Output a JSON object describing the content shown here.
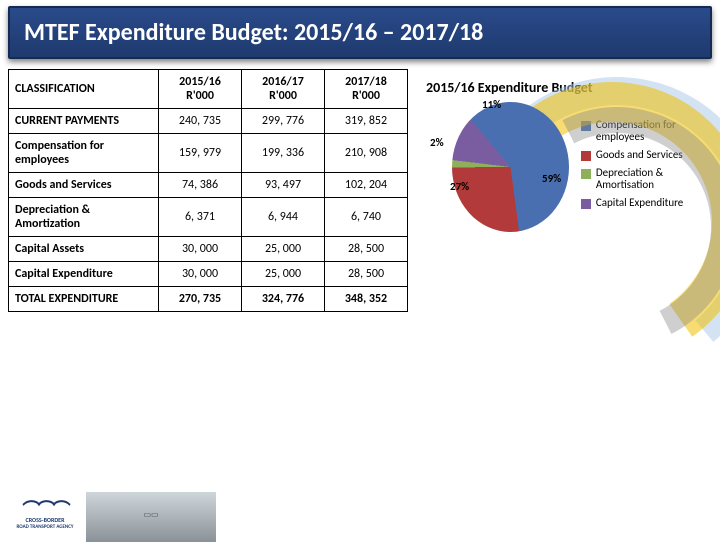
{
  "title": "MTEF Expenditure Budget: 2015/16 – 2017/18",
  "table": {
    "cols": [
      "CLASSIFICATION",
      "2015/16 R'000",
      "2016/17 R'000",
      "2017/18 R'000"
    ],
    "rows": [
      {
        "label": "CURRENT PAYMENTS",
        "c1": "240, 735",
        "c2": "299, 776",
        "c3": "319, 852"
      },
      {
        "label": "Compensation for employees",
        "c1": "159, 979",
        "c2": "199, 336",
        "c3": "210, 908"
      },
      {
        "label": "Goods and Services",
        "c1": "74, 386",
        "c2": "93, 497",
        "c3": "102, 204"
      },
      {
        "label": "Depreciation & Amortization",
        "c1": "6, 371",
        "c2": "6, 944",
        "c3": "6, 740"
      },
      {
        "label": "Capital Assets",
        "c1": "30, 000",
        "c2": "25, 000",
        "c3": "28, 500"
      },
      {
        "label": "Capital Expenditure",
        "c1": "30, 000",
        "c2": "25, 000",
        "c3": "28, 500"
      },
      {
        "label": "TOTAL EXPENDITURE",
        "c1": "270, 735",
        "c2": "324, 776",
        "c3": "348, 352",
        "total": true
      }
    ]
  },
  "chart": {
    "title": "2015/16 Expenditure Budget",
    "type": "pie",
    "slices": [
      {
        "name": "Compensation for employees",
        "pct": 59,
        "color": "#4a6fb0"
      },
      {
        "name": "Goods and Services",
        "pct": 27,
        "color": "#b23a3a"
      },
      {
        "name": "Depreciation & Amortisation",
        "pct": 2,
        "color": "#8fb05a"
      },
      {
        "name": "Capital Expenditure",
        "pct": 11,
        "color": "#7a5ca0"
      }
    ],
    "labels": {
      "l0": "59%",
      "l1": "27%",
      "l2": "2%",
      "l3": "11%"
    },
    "label_fontsize": 11,
    "title_fontsize": 14,
    "background_color": "#ffffff"
  },
  "logo": {
    "line1": "CROSS-BORDER",
    "line2": "ROAD TRANSPORT AGENCY"
  },
  "colors": {
    "title_bg": "#1e3a6e",
    "curve_yellow": "#f0c000",
    "curve_blue": "#aac8e8",
    "curve_grey": "#888888"
  }
}
